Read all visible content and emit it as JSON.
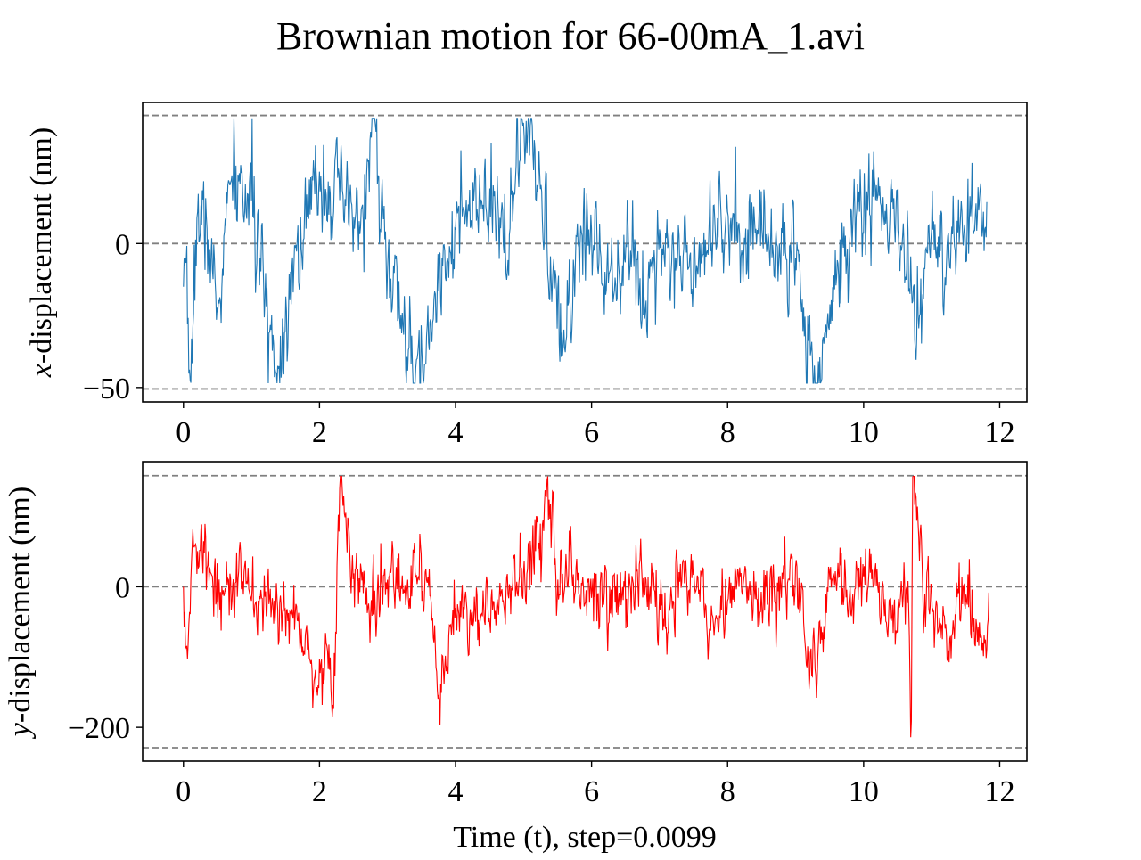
{
  "figure": {
    "title": "Brownian motion for 66-00mA_1.avi",
    "xlabel": "Time (t), step=0.0099"
  },
  "chart_data": [
    {
      "type": "line",
      "panel": "top",
      "title": "",
      "xlabel": "",
      "ylabel_var": "x",
      "ylabel_rest": "-displacement (nm)",
      "xlim": [
        -0.6,
        12.4
      ],
      "ylim": [
        -55,
        49
      ],
      "xticks": [
        0,
        2,
        4,
        6,
        8,
        10,
        12
      ],
      "yticks": [
        0,
        -50
      ],
      "ytick_labels": [
        "0",
        "−50"
      ],
      "reference_lines": [
        44.5,
        0,
        -50.5
      ],
      "grid": false,
      "series": [
        {
          "color": "#1f77b4",
          "x_start": 0,
          "x_step": 0.0099,
          "n_points": 1200,
          "seed": 7,
          "sigma_scale": 15,
          "key_points": [
            [
              0.0,
              -15
            ],
            [
              0.06,
              -28
            ],
            [
              0.1,
              -48
            ],
            [
              0.2,
              10
            ],
            [
              0.35,
              5
            ],
            [
              0.5,
              -25
            ],
            [
              0.7,
              22
            ],
            [
              1.0,
              15
            ],
            [
              1.2,
              -20
            ],
            [
              1.4,
              -44
            ],
            [
              1.6,
              -5
            ],
            [
              1.8,
              5
            ],
            [
              2.0,
              25
            ],
            [
              2.3,
              15
            ],
            [
              2.6,
              5
            ],
            [
              2.8,
              44
            ],
            [
              3.0,
              -10
            ],
            [
              3.2,
              -25
            ],
            [
              3.4,
              -50
            ],
            [
              3.6,
              -35
            ],
            [
              3.8,
              -5
            ],
            [
              4.0,
              5
            ],
            [
              4.4,
              12
            ],
            [
              4.8,
              5
            ],
            [
              5.0,
              42
            ],
            [
              5.2,
              20
            ],
            [
              5.4,
              -5
            ],
            [
              5.55,
              -40
            ],
            [
              5.8,
              0
            ],
            [
              6.0,
              5
            ],
            [
              6.2,
              -10
            ],
            [
              6.5,
              0
            ],
            [
              6.8,
              -20
            ],
            [
              7.0,
              5
            ],
            [
              7.3,
              -8
            ],
            [
              7.6,
              0
            ],
            [
              7.9,
              12
            ],
            [
              8.1,
              0
            ],
            [
              8.3,
              5
            ],
            [
              8.5,
              5
            ],
            [
              8.7,
              0
            ],
            [
              9.0,
              -5
            ],
            [
              9.3,
              -50
            ],
            [
              9.6,
              -12
            ],
            [
              9.9,
              12
            ],
            [
              10.2,
              15
            ],
            [
              10.5,
              5
            ],
            [
              10.8,
              -25
            ],
            [
              11.0,
              5
            ],
            [
              11.2,
              -12
            ],
            [
              11.4,
              0
            ],
            [
              11.6,
              10
            ],
            [
              11.82,
              5
            ]
          ]
        }
      ]
    },
    {
      "type": "line",
      "panel": "bottom",
      "title": "",
      "ylabel_var": "y",
      "ylabel_rest": "-displacement (nm)",
      "xlabel": "Time (t), step=0.0099",
      "xlim": [
        -0.6,
        12.4
      ],
      "ylim": [
        -248,
        178
      ],
      "xticks": [
        0,
        2,
        4,
        6,
        8,
        10,
        12
      ],
      "yticks": [
        0,
        -200
      ],
      "ytick_labels": [
        "0",
        "−200"
      ],
      "reference_lines": [
        158,
        0,
        -229
      ],
      "grid": false,
      "series": [
        {
          "color": "#ff0000",
          "x_start": 0,
          "x_step": 0.0099,
          "n_points": 1200,
          "seed": 13,
          "sigma_scale": 45,
          "key_points": [
            [
              0.0,
              0
            ],
            [
              0.05,
              -85
            ],
            [
              0.15,
              60
            ],
            [
              0.4,
              20
            ],
            [
              0.6,
              -10
            ],
            [
              0.8,
              10
            ],
            [
              1.0,
              -20
            ],
            [
              1.3,
              -30
            ],
            [
              1.6,
              -40
            ],
            [
              1.8,
              -60
            ],
            [
              1.95,
              -150
            ],
            [
              2.1,
              -80
            ],
            [
              2.2,
              -170
            ],
            [
              2.3,
              150
            ],
            [
              2.5,
              20
            ],
            [
              2.8,
              -40
            ],
            [
              3.0,
              10
            ],
            [
              3.3,
              10
            ],
            [
              3.6,
              5
            ],
            [
              3.7,
              -80
            ],
            [
              3.75,
              -155
            ],
            [
              4.0,
              -30
            ],
            [
              4.3,
              -50
            ],
            [
              4.6,
              -30
            ],
            [
              5.0,
              20
            ],
            [
              5.3,
              80
            ],
            [
              5.35,
              158
            ],
            [
              5.5,
              10
            ],
            [
              5.8,
              20
            ],
            [
              6.1,
              -10
            ],
            [
              6.4,
              -20
            ],
            [
              6.8,
              10
            ],
            [
              7.0,
              -10
            ],
            [
              7.2,
              -20
            ],
            [
              7.5,
              20
            ],
            [
              7.8,
              -70
            ],
            [
              8.0,
              -20
            ],
            [
              8.2,
              20
            ],
            [
              8.5,
              -30
            ],
            [
              8.8,
              20
            ],
            [
              9.1,
              0
            ],
            [
              9.2,
              -150
            ],
            [
              9.5,
              10
            ],
            [
              9.8,
              0
            ],
            [
              10.1,
              20
            ],
            [
              10.4,
              -50
            ],
            [
              10.65,
              20
            ],
            [
              10.7,
              -228
            ],
            [
              10.72,
              158
            ],
            [
              10.9,
              -10
            ],
            [
              11.2,
              -60
            ],
            [
              11.5,
              -10
            ],
            [
              11.75,
              -80
            ],
            [
              11.85,
              -20
            ]
          ]
        }
      ]
    }
  ]
}
